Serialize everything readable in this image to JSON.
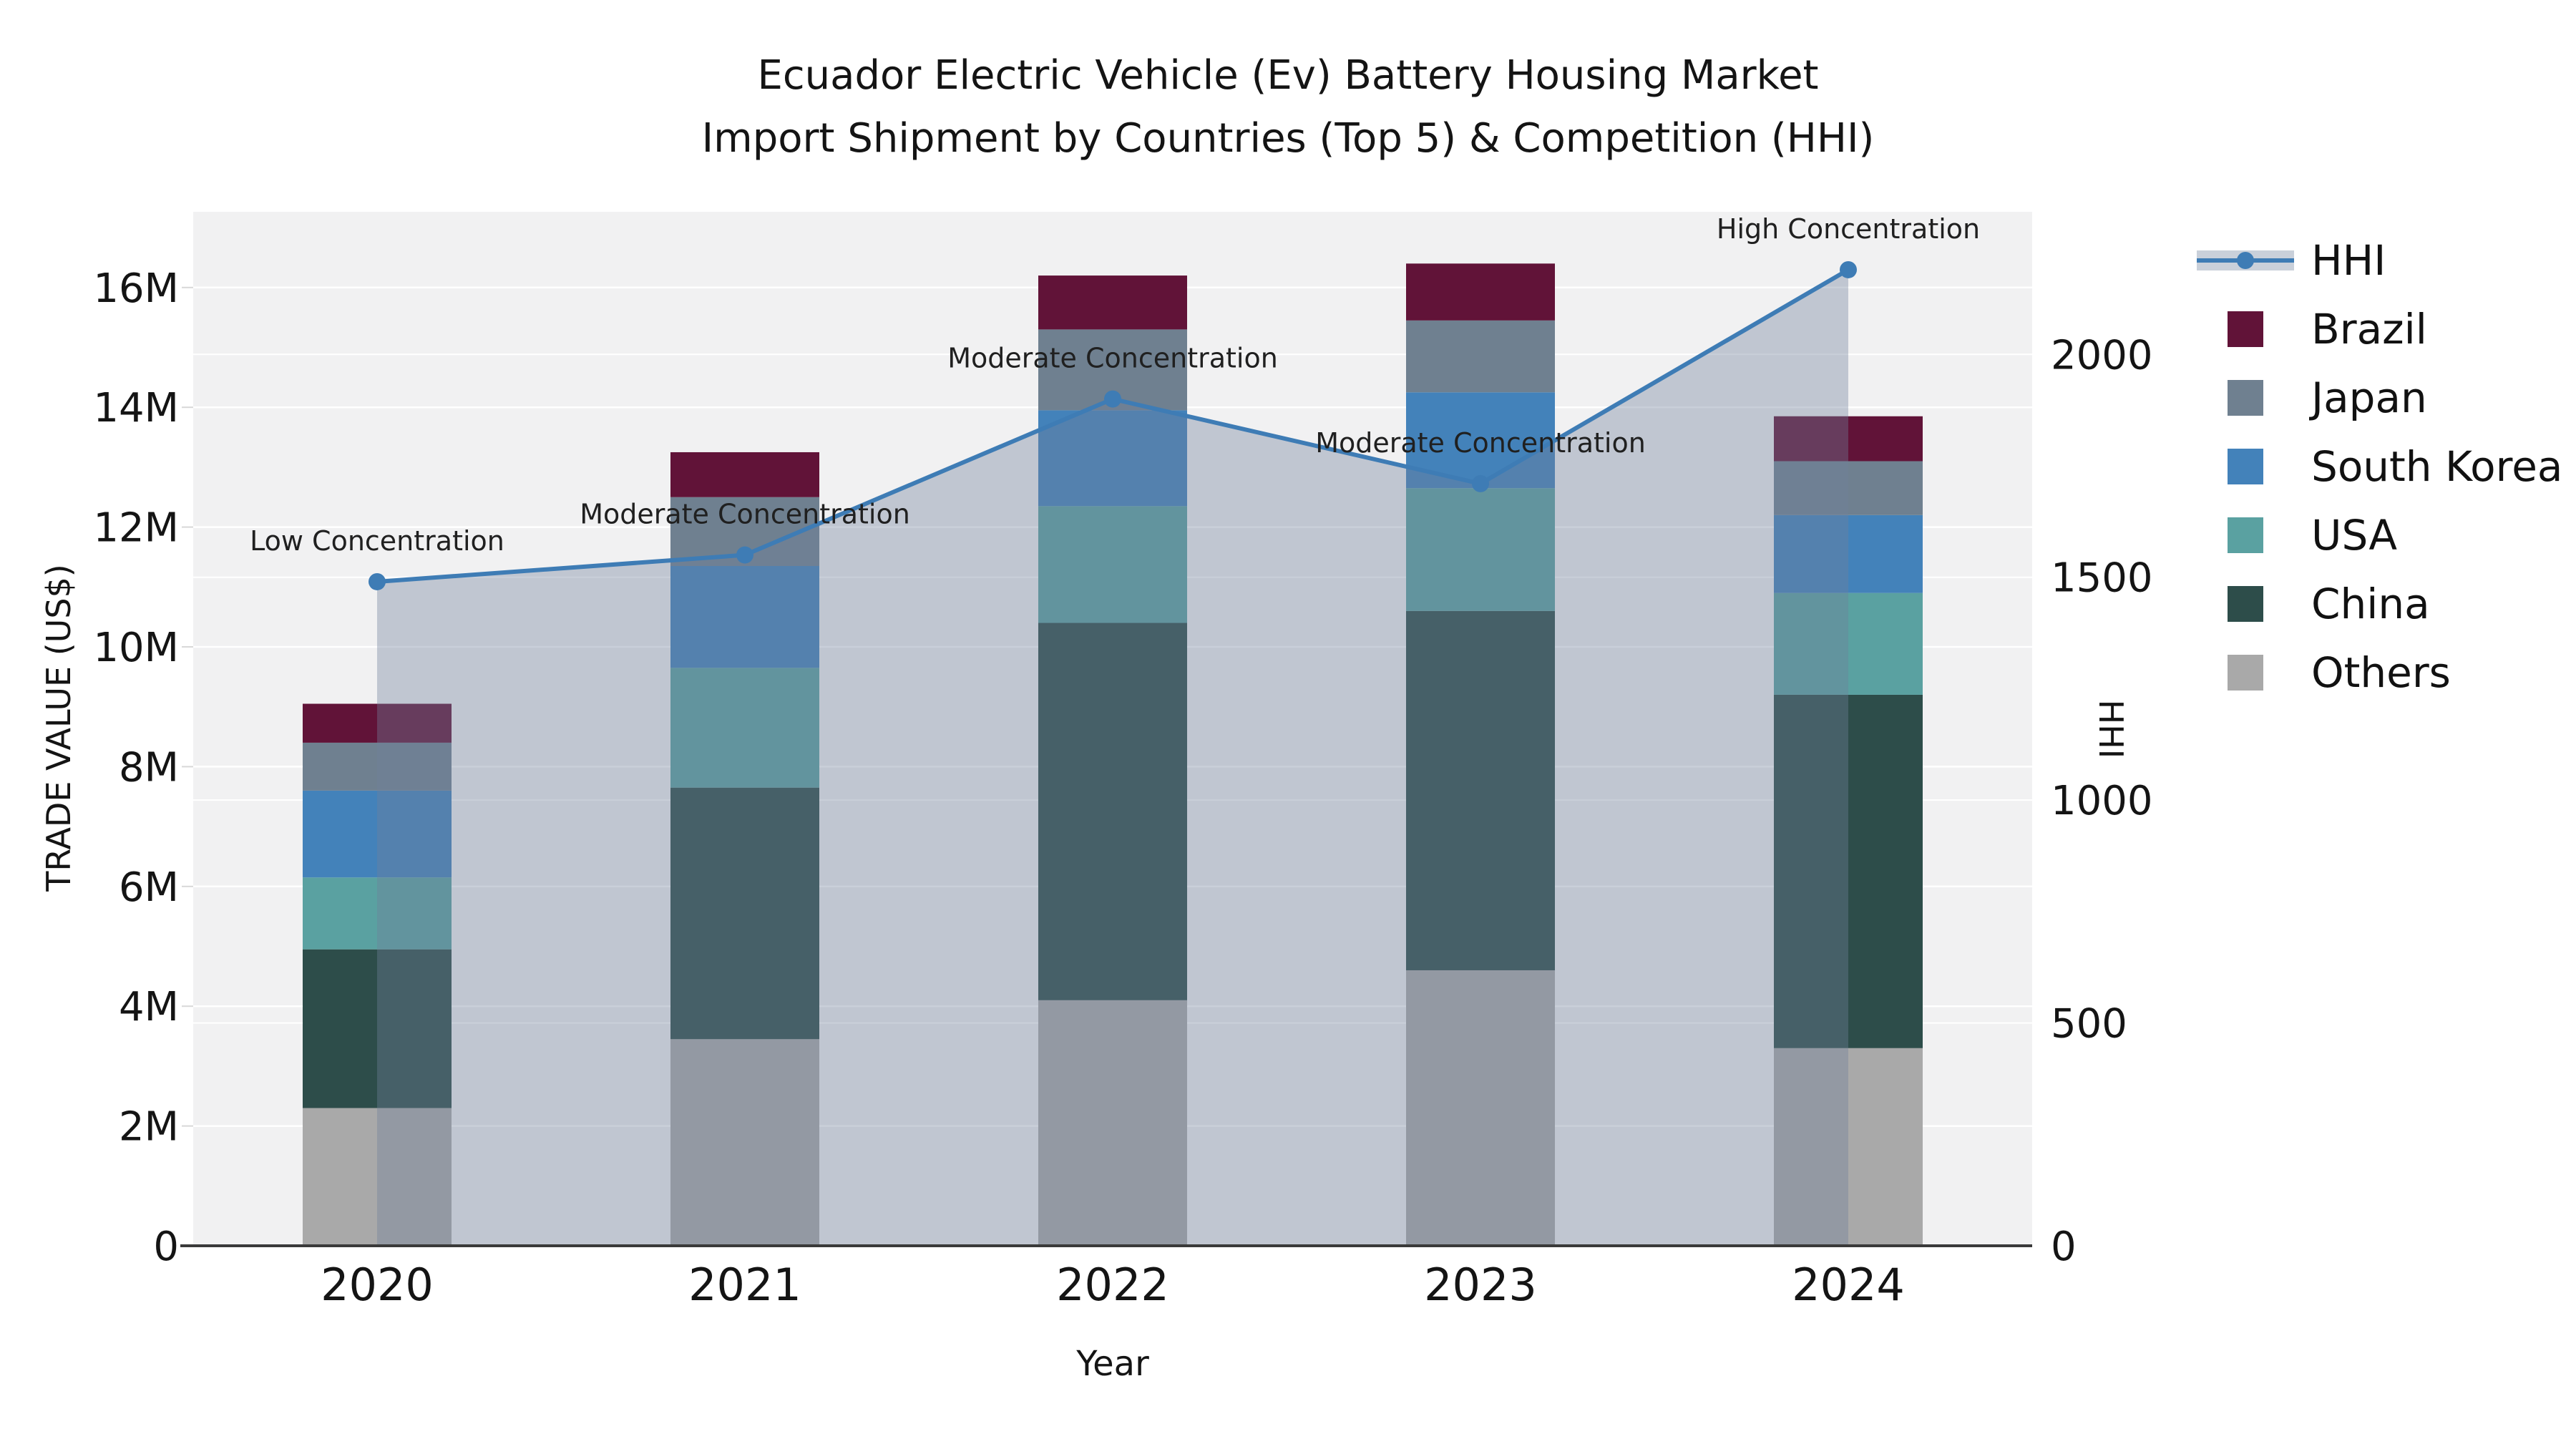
{
  "title": {
    "line1": "Ecuador Electric Vehicle (Ev) Battery Housing Market",
    "line2": "Import Shipment by Countries (Top 5) & Competition (HHI)"
  },
  "axis_labels": {
    "y_left": "TRADE VALUE (US$)",
    "y_right": "HHI",
    "x": "Year"
  },
  "legend": {
    "position": "right",
    "items": [
      {
        "label": "HHI",
        "type": "line",
        "color": "#3e7cb5",
        "band_color": "#c9d0da"
      },
      {
        "label": "Brazil",
        "type": "swatch",
        "color": "#611338"
      },
      {
        "label": "Japan",
        "type": "swatch",
        "color": "#6f8090"
      },
      {
        "label": "South Korea",
        "type": "swatch",
        "color": "#4382ba"
      },
      {
        "label": "USA",
        "type": "swatch",
        "color": "#5aa1a1"
      },
      {
        "label": "China",
        "type": "swatch",
        "color": "#2d4d4a"
      },
      {
        "label": "Others",
        "type": "swatch",
        "color": "#a9a9a9"
      }
    ]
  },
  "chart_data": {
    "type": "stacked-bar+line",
    "title": "Ecuador Electric Vehicle (Ev) Battery Housing Market Import Shipment by Countries (Top 5) & Competition (HHI)",
    "categories": [
      "2020",
      "2021",
      "2022",
      "2023",
      "2024"
    ],
    "bar_series_bottom_to_top": [
      {
        "name": "Others",
        "color": "#a9a9a9",
        "values_usd": [
          2300000,
          3450000,
          4100000,
          4600000,
          3300000
        ]
      },
      {
        "name": "China",
        "color": "#2d4d4a",
        "values_usd": [
          2650000,
          4200000,
          6300000,
          6000000,
          5900000
        ]
      },
      {
        "name": "USA",
        "color": "#5aa1a1",
        "values_usd": [
          1200000,
          2000000,
          1950000,
          2050000,
          1700000
        ]
      },
      {
        "name": "South Korea",
        "color": "#4382ba",
        "values_usd": [
          1450000,
          1700000,
          1600000,
          1600000,
          1300000
        ]
      },
      {
        "name": "Japan",
        "color": "#6f8090",
        "values_usd": [
          800000,
          1150000,
          1350000,
          1200000,
          900000
        ]
      },
      {
        "name": "Brazil",
        "color": "#611338",
        "values_usd": [
          650000,
          750000,
          900000,
          950000,
          750000
        ]
      }
    ],
    "bar_totals_usd": [
      9050000,
      13250000,
      16200000,
      16400000,
      13850000
    ],
    "line_series": {
      "name": "HHI",
      "color": "#3e7cb5",
      "area_fill": "rgba(114,130,156,0.38)",
      "values": [
        1490,
        1550,
        1900,
        1710,
        2190
      ]
    },
    "annotations": [
      {
        "category": "2020",
        "text": "Low Concentration"
      },
      {
        "category": "2021",
        "text": "Moderate Concentration"
      },
      {
        "category": "2022",
        "text": "Moderate Concentration"
      },
      {
        "category": "2023",
        "text": "Moderate Concentration"
      },
      {
        "category": "2024",
        "text": "High Concentration"
      }
    ],
    "y_left_axis": {
      "label": "TRADE VALUE (US$)",
      "ticks": [
        "0",
        "2M",
        "4M",
        "6M",
        "8M",
        "10M",
        "12M",
        "14M",
        "16M"
      ],
      "tick_values": [
        0,
        2000000,
        4000000,
        6000000,
        8000000,
        10000000,
        12000000,
        14000000,
        16000000
      ],
      "range_usd": [
        0,
        17280000
      ]
    },
    "y_right_axis": {
      "label": "HHI",
      "ticks": [
        "0",
        "500",
        "1000",
        "1500",
        "2000"
      ],
      "tick_values": [
        0,
        500,
        1000,
        1500,
        2000
      ],
      "range": [
        0,
        2320
      ]
    },
    "x_axis": {
      "label": "Year"
    },
    "grid": true,
    "plot_background": "#f1f1f2",
    "gridline_color": "#ffffff",
    "axis_line_color": "#3a3a3a",
    "legend_position": "right"
  }
}
